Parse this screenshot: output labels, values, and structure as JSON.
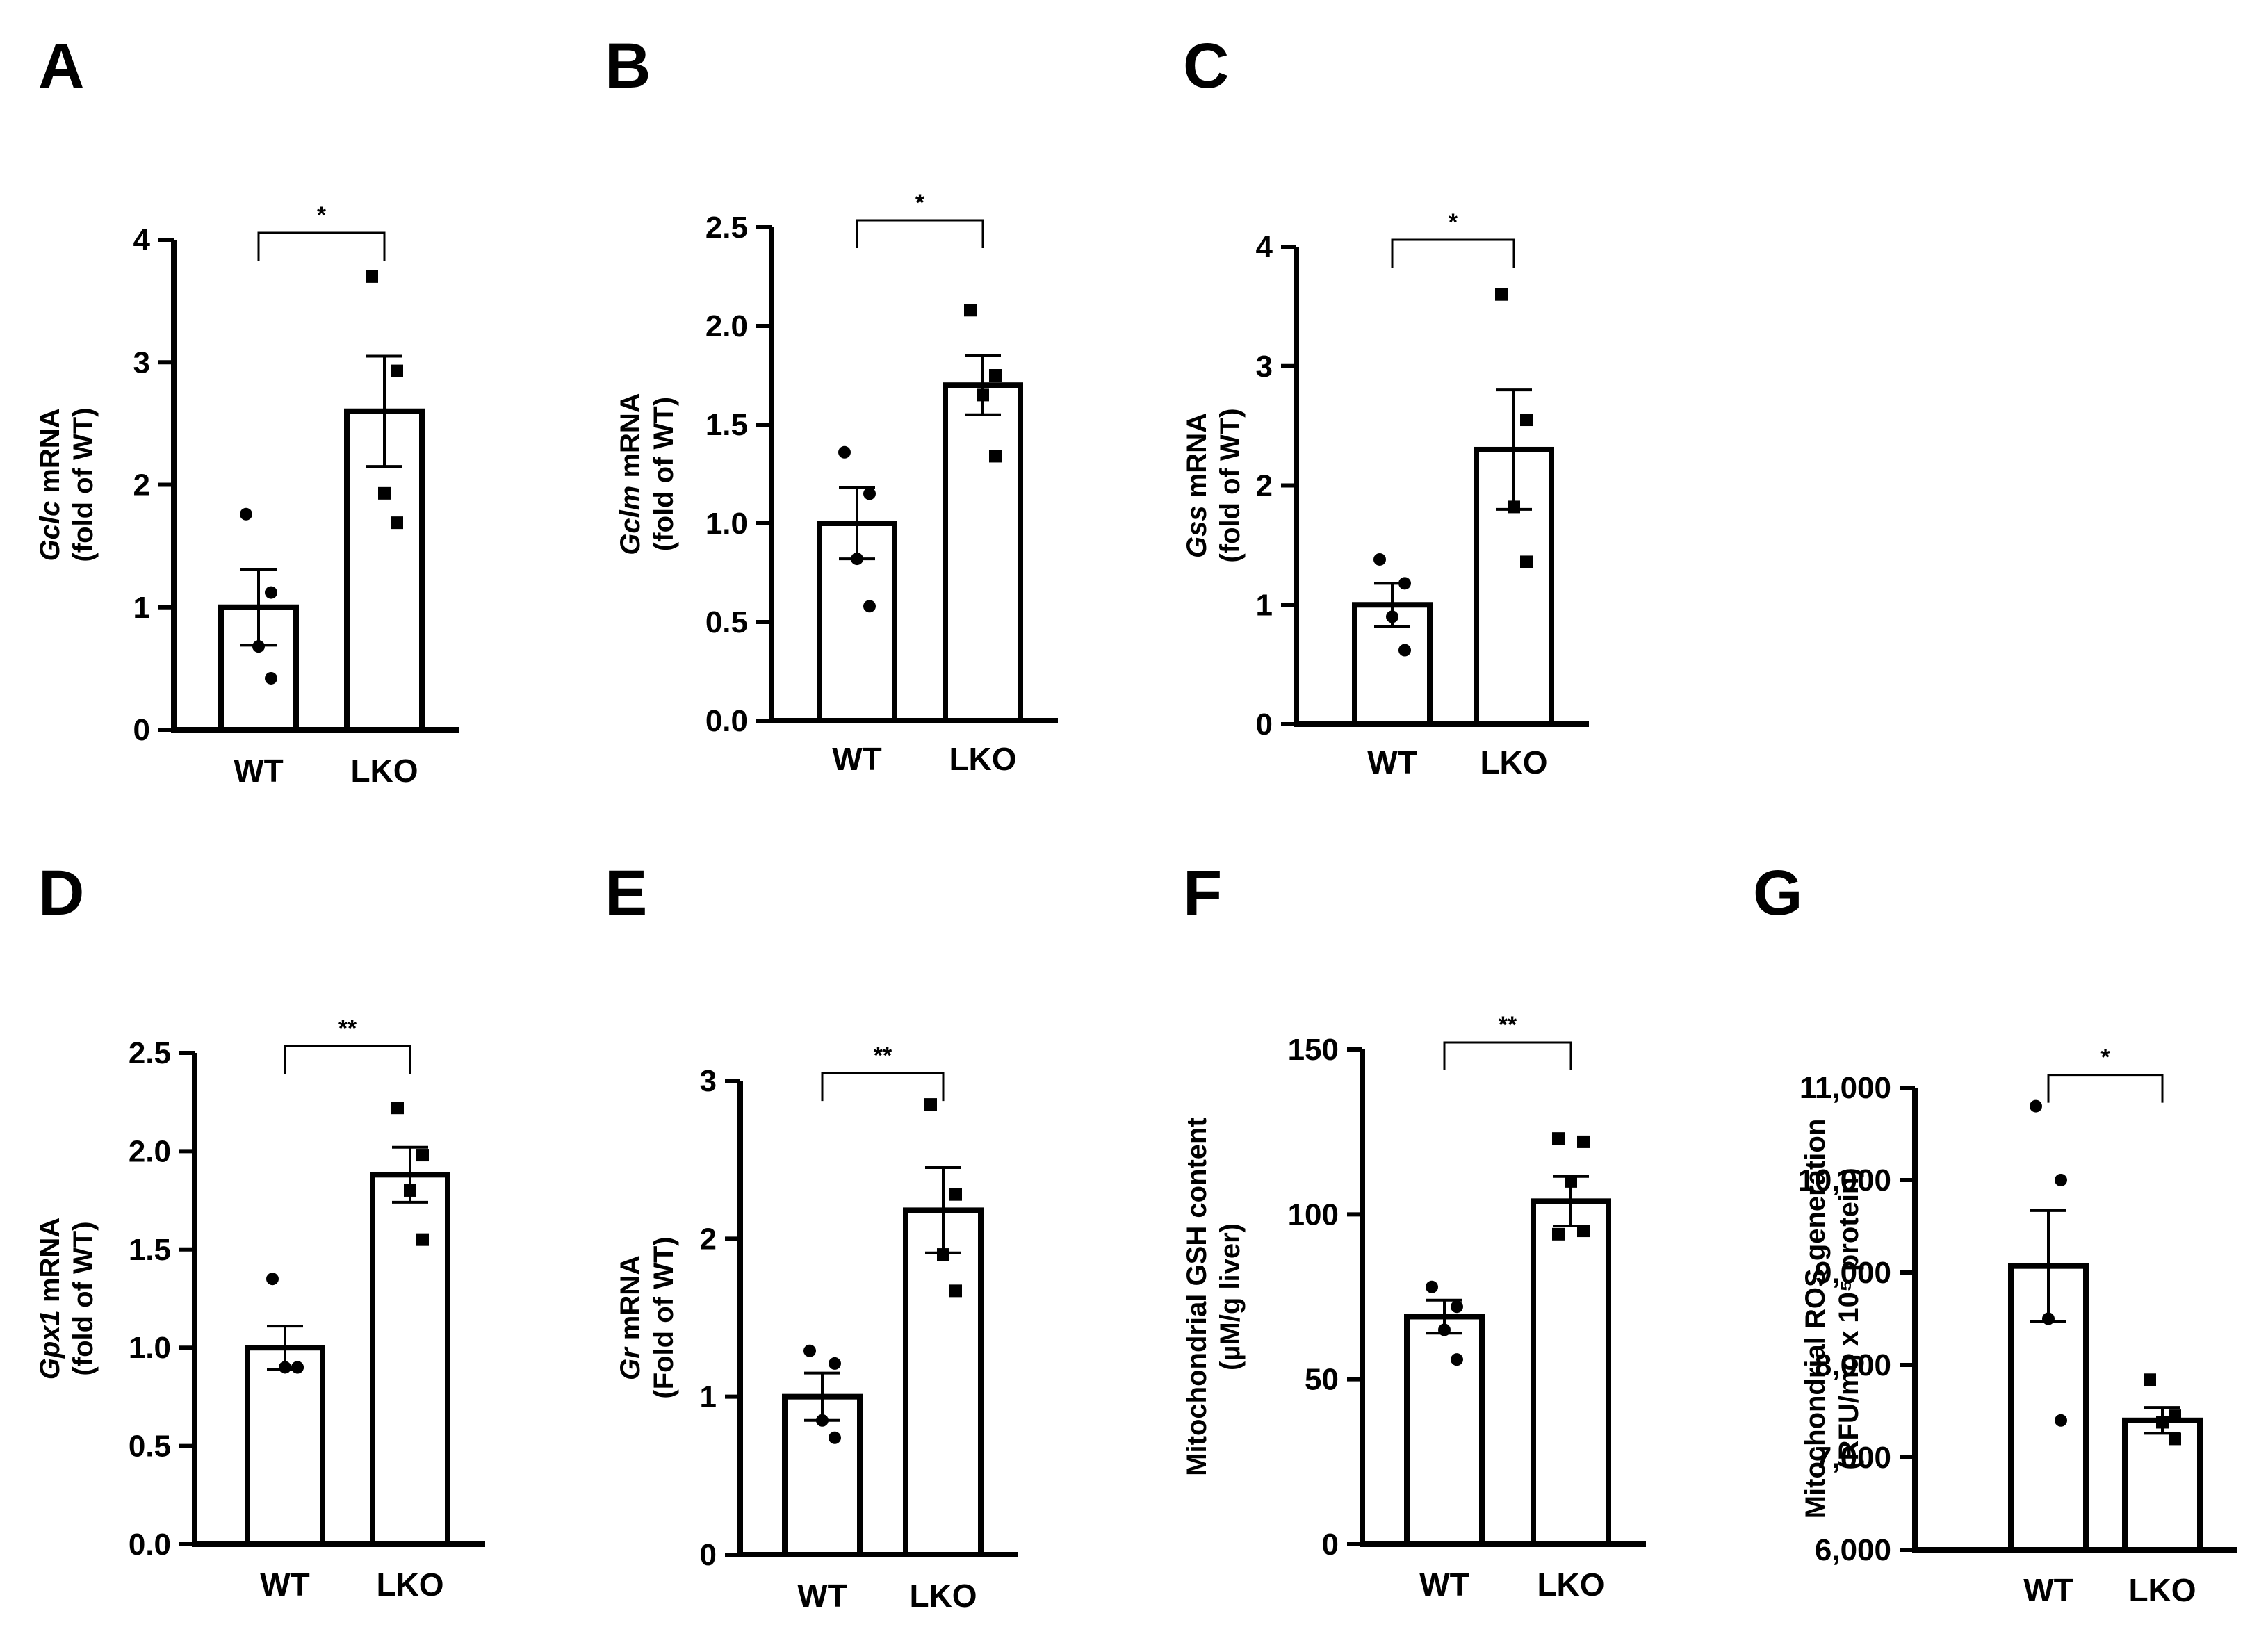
{
  "figure": {
    "background": "#ffffff",
    "ink": "#000000"
  },
  "chart_data": [
    {
      "panel": "A",
      "type": "bar",
      "title": "",
      "categories": [
        "WT",
        "LKO"
      ],
      "ylabel_italic": "Gclc",
      "ylabel_rest": " mRNA",
      "ylabel_line2": "(fold of WT)",
      "ylim": [
        0,
        4
      ],
      "ticks": [
        0,
        1,
        2,
        3,
        4
      ],
      "tick_labels": [
        "0",
        "1",
        "2",
        "3",
        "4"
      ],
      "values": [
        1.0,
        2.6
      ],
      "sem": [
        0.31,
        0.45
      ],
      "points": [
        [
          1.76,
          1.12,
          0.68,
          0.42
        ],
        [
          3.7,
          2.93,
          1.93,
          1.69
        ]
      ],
      "significance": "*"
    },
    {
      "panel": "B",
      "type": "bar",
      "title": "",
      "categories": [
        "WT",
        "LKO"
      ],
      "ylabel_italic": "Gclm",
      "ylabel_rest": " mRNA",
      "ylabel_line2": "(fold of WT)",
      "ylim": [
        0,
        2.5
      ],
      "ticks": [
        0,
        0.5,
        1,
        1.5,
        2,
        2.5
      ],
      "tick_labels": [
        "0.0",
        "0.5",
        "1.0",
        "1.5",
        "2.0",
        "2.5"
      ],
      "values": [
        1.0,
        1.7
      ],
      "sem": [
        0.18,
        0.15
      ],
      "points": [
        [
          1.36,
          1.15,
          0.82,
          0.58
        ],
        [
          2.08,
          1.75,
          1.65,
          1.34
        ]
      ],
      "significance": "*"
    },
    {
      "panel": "C",
      "type": "bar",
      "title": "",
      "categories": [
        "WT",
        "LKO"
      ],
      "ylabel_italic": "Gss",
      "ylabel_rest": " mRNA",
      "ylabel_line2": "(fold of WT)",
      "ylim": [
        0,
        4
      ],
      "ticks": [
        0,
        1,
        2,
        3,
        4
      ],
      "tick_labels": [
        "0",
        "1",
        "2",
        "3",
        "4"
      ],
      "values": [
        1.0,
        2.3
      ],
      "sem": [
        0.18,
        0.5
      ],
      "points": [
        [
          1.38,
          1.18,
          0.9,
          0.62
        ],
        [
          3.6,
          2.55,
          1.82,
          1.36
        ]
      ],
      "significance": "*"
    },
    {
      "panel": "D",
      "type": "bar",
      "title": "",
      "categories": [
        "WT",
        "LKO"
      ],
      "ylabel_italic": "Gpx1",
      "ylabel_rest": " mRNA",
      "ylabel_line2": "(fold of WT)",
      "ylim": [
        0,
        2.5
      ],
      "ticks": [
        0,
        0.5,
        1,
        1.5,
        2,
        2.5
      ],
      "tick_labels": [
        "0.0",
        "0.5",
        "1.0",
        "1.5",
        "2.0",
        "2.5"
      ],
      "values": [
        1.0,
        1.88
      ],
      "sem": [
        0.11,
        0.14
      ],
      "points": [
        [
          1.35,
          0.9,
          0.9,
          0.9
        ],
        [
          2.22,
          1.98,
          1.8,
          1.55
        ]
      ],
      "significance": "**"
    },
    {
      "panel": "E",
      "type": "bar",
      "title": "",
      "categories": [
        "WT",
        "LKO"
      ],
      "ylabel_italic": "Gr",
      "ylabel_rest": " mRNA",
      "ylabel_line2": "(Fold of WT)",
      "ylim": [
        0,
        3
      ],
      "ticks": [
        0,
        1,
        2,
        3
      ],
      "tick_labels": [
        "0",
        "1",
        "2",
        "3"
      ],
      "values": [
        1.0,
        2.18
      ],
      "sem": [
        0.15,
        0.27
      ],
      "points": [
        [
          1.29,
          1.21,
          0.85,
          0.74
        ],
        [
          2.85,
          2.28,
          1.9,
          1.67
        ]
      ],
      "significance": "**"
    },
    {
      "panel": "F",
      "type": "bar",
      "title": "",
      "categories": [
        "WT",
        "LKO"
      ],
      "ylabel_italic": "",
      "ylabel_rest": "Mitochondrial GSH content",
      "ylabel_line2": "(µM/g liver)",
      "ylim": [
        0,
        150
      ],
      "ticks": [
        0,
        50,
        100,
        150
      ],
      "tick_labels": [
        "0",
        "50",
        "100",
        "150"
      ],
      "values": [
        69,
        104
      ],
      "sem": [
        5,
        7.5
      ],
      "points": [
        [
          78,
          72,
          65,
          56
        ],
        [
          123,
          122,
          110,
          95,
          94
        ]
      ],
      "significance": "**"
    },
    {
      "panel": "G",
      "type": "bar",
      "title": "",
      "categories": [
        "WT",
        "LKO"
      ],
      "ylabel_italic": "",
      "ylabel_rest": "Mitochondrial ROS generation",
      "ylabel_line2": "(RFU/mg x 10⁵ protein)",
      "ylim": [
        6000,
        11000
      ],
      "ticks": [
        6000,
        7000,
        8000,
        9000,
        10000,
        11000
      ],
      "tick_labels": [
        "6,000",
        "7,000",
        "8,000",
        "9,000",
        "10,000",
        "11,000"
      ],
      "values": [
        9070,
        7400
      ],
      "sem": [
        600,
        140
      ],
      "points": [
        [
          10800,
          10000,
          8500,
          7400
        ],
        [
          7840,
          7450,
          7380,
          7200
        ]
      ],
      "significance": "*"
    }
  ]
}
